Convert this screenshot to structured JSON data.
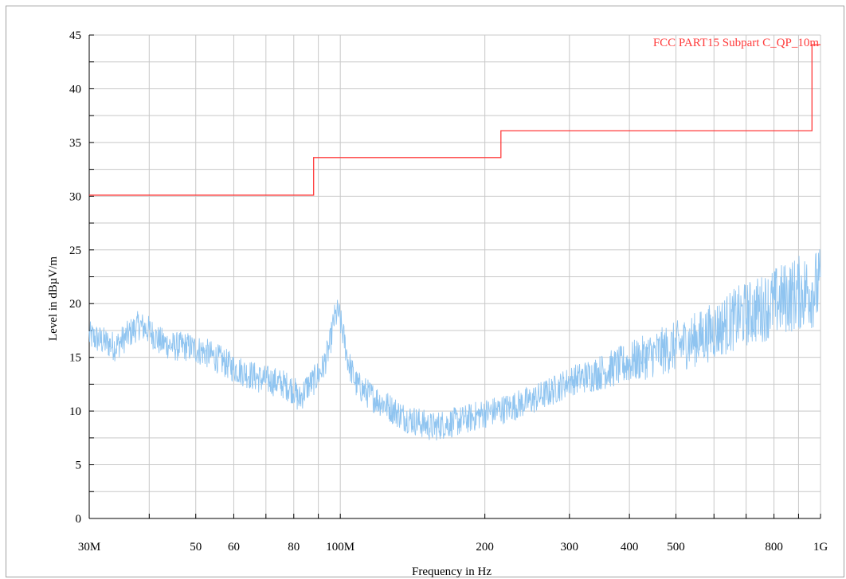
{
  "chart_data": {
    "type": "line",
    "xlabel": "Frequency in Hz",
    "ylabel": "Level in dBµV/m",
    "x_scale": "log",
    "xlim": [
      30,
      1000
    ],
    "ylim": [
      0,
      45
    ],
    "grid": true,
    "x_ticks": [
      {
        "value": 30,
        "label": "30M"
      },
      {
        "value": 50,
        "label": "50"
      },
      {
        "value": 60,
        "label": "60"
      },
      {
        "value": 80,
        "label": "80"
      },
      {
        "value": 100,
        "label": "100M"
      },
      {
        "value": 200,
        "label": "200"
      },
      {
        "value": 300,
        "label": "300"
      },
      {
        "value": 400,
        "label": "400"
      },
      {
        "value": 500,
        "label": "500"
      },
      {
        "value": 800,
        "label": "800"
      },
      {
        "value": 1000,
        "label": "1G"
      }
    ],
    "y_ticks": [
      0,
      5,
      10,
      15,
      20,
      25,
      30,
      35,
      40,
      45
    ],
    "series": [
      {
        "name": "FCC PART15 Subpart C_QP_10m",
        "color": "#ff3b3b",
        "kind": "limit",
        "points": [
          [
            30,
            30.1
          ],
          [
            88,
            30.1
          ],
          [
            88,
            33.6
          ],
          [
            216,
            33.6
          ],
          [
            216,
            36.1
          ],
          [
            960,
            36.1
          ],
          [
            960,
            44.1
          ],
          [
            1000,
            44.1
          ]
        ]
      },
      {
        "color": "#8fc4f0",
        "kind": "measurement",
        "points": [
          [
            30,
            17.0
          ],
          [
            32,
            16.5
          ],
          [
            34,
            16.0
          ],
          [
            36,
            17.0
          ],
          [
            38,
            18.0
          ],
          [
            40,
            17.5
          ],
          [
            42,
            16.5
          ],
          [
            45,
            16.0
          ],
          [
            48,
            16.0
          ],
          [
            52,
            15.5
          ],
          [
            56,
            14.8
          ],
          [
            60,
            14.0
          ],
          [
            64,
            13.5
          ],
          [
            68,
            13.0
          ],
          [
            72,
            12.8
          ],
          [
            76,
            12.5
          ],
          [
            80,
            12.0
          ],
          [
            82,
            11.0
          ],
          [
            85,
            12.2
          ],
          [
            88,
            12.8
          ],
          [
            92,
            14.0
          ],
          [
            95,
            16.0
          ],
          [
            97,
            18.5
          ],
          [
            99,
            19.2
          ],
          [
            101,
            17.5
          ],
          [
            104,
            14.5
          ],
          [
            108,
            12.5
          ],
          [
            115,
            11.5
          ],
          [
            125,
            10.5
          ],
          [
            135,
            9.5
          ],
          [
            145,
            9.0
          ],
          [
            155,
            8.5
          ],
          [
            165,
            8.8
          ],
          [
            175,
            9.0
          ],
          [
            185,
            9.3
          ],
          [
            200,
            9.8
          ],
          [
            220,
            10.2
          ],
          [
            250,
            11.0
          ],
          [
            280,
            12.0
          ],
          [
            300,
            12.8
          ],
          [
            330,
            13.3
          ],
          [
            360,
            13.8
          ],
          [
            400,
            14.5
          ],
          [
            450,
            15.3
          ],
          [
            500,
            16.0
          ],
          [
            560,
            16.8
          ],
          [
            620,
            17.8
          ],
          [
            680,
            18.8
          ],
          [
            750,
            19.5
          ],
          [
            820,
            20.3
          ],
          [
            900,
            21.0
          ],
          [
            1000,
            21.5
          ]
        ],
        "noise": 1.4
      }
    ],
    "legend_placement": "top-right"
  }
}
